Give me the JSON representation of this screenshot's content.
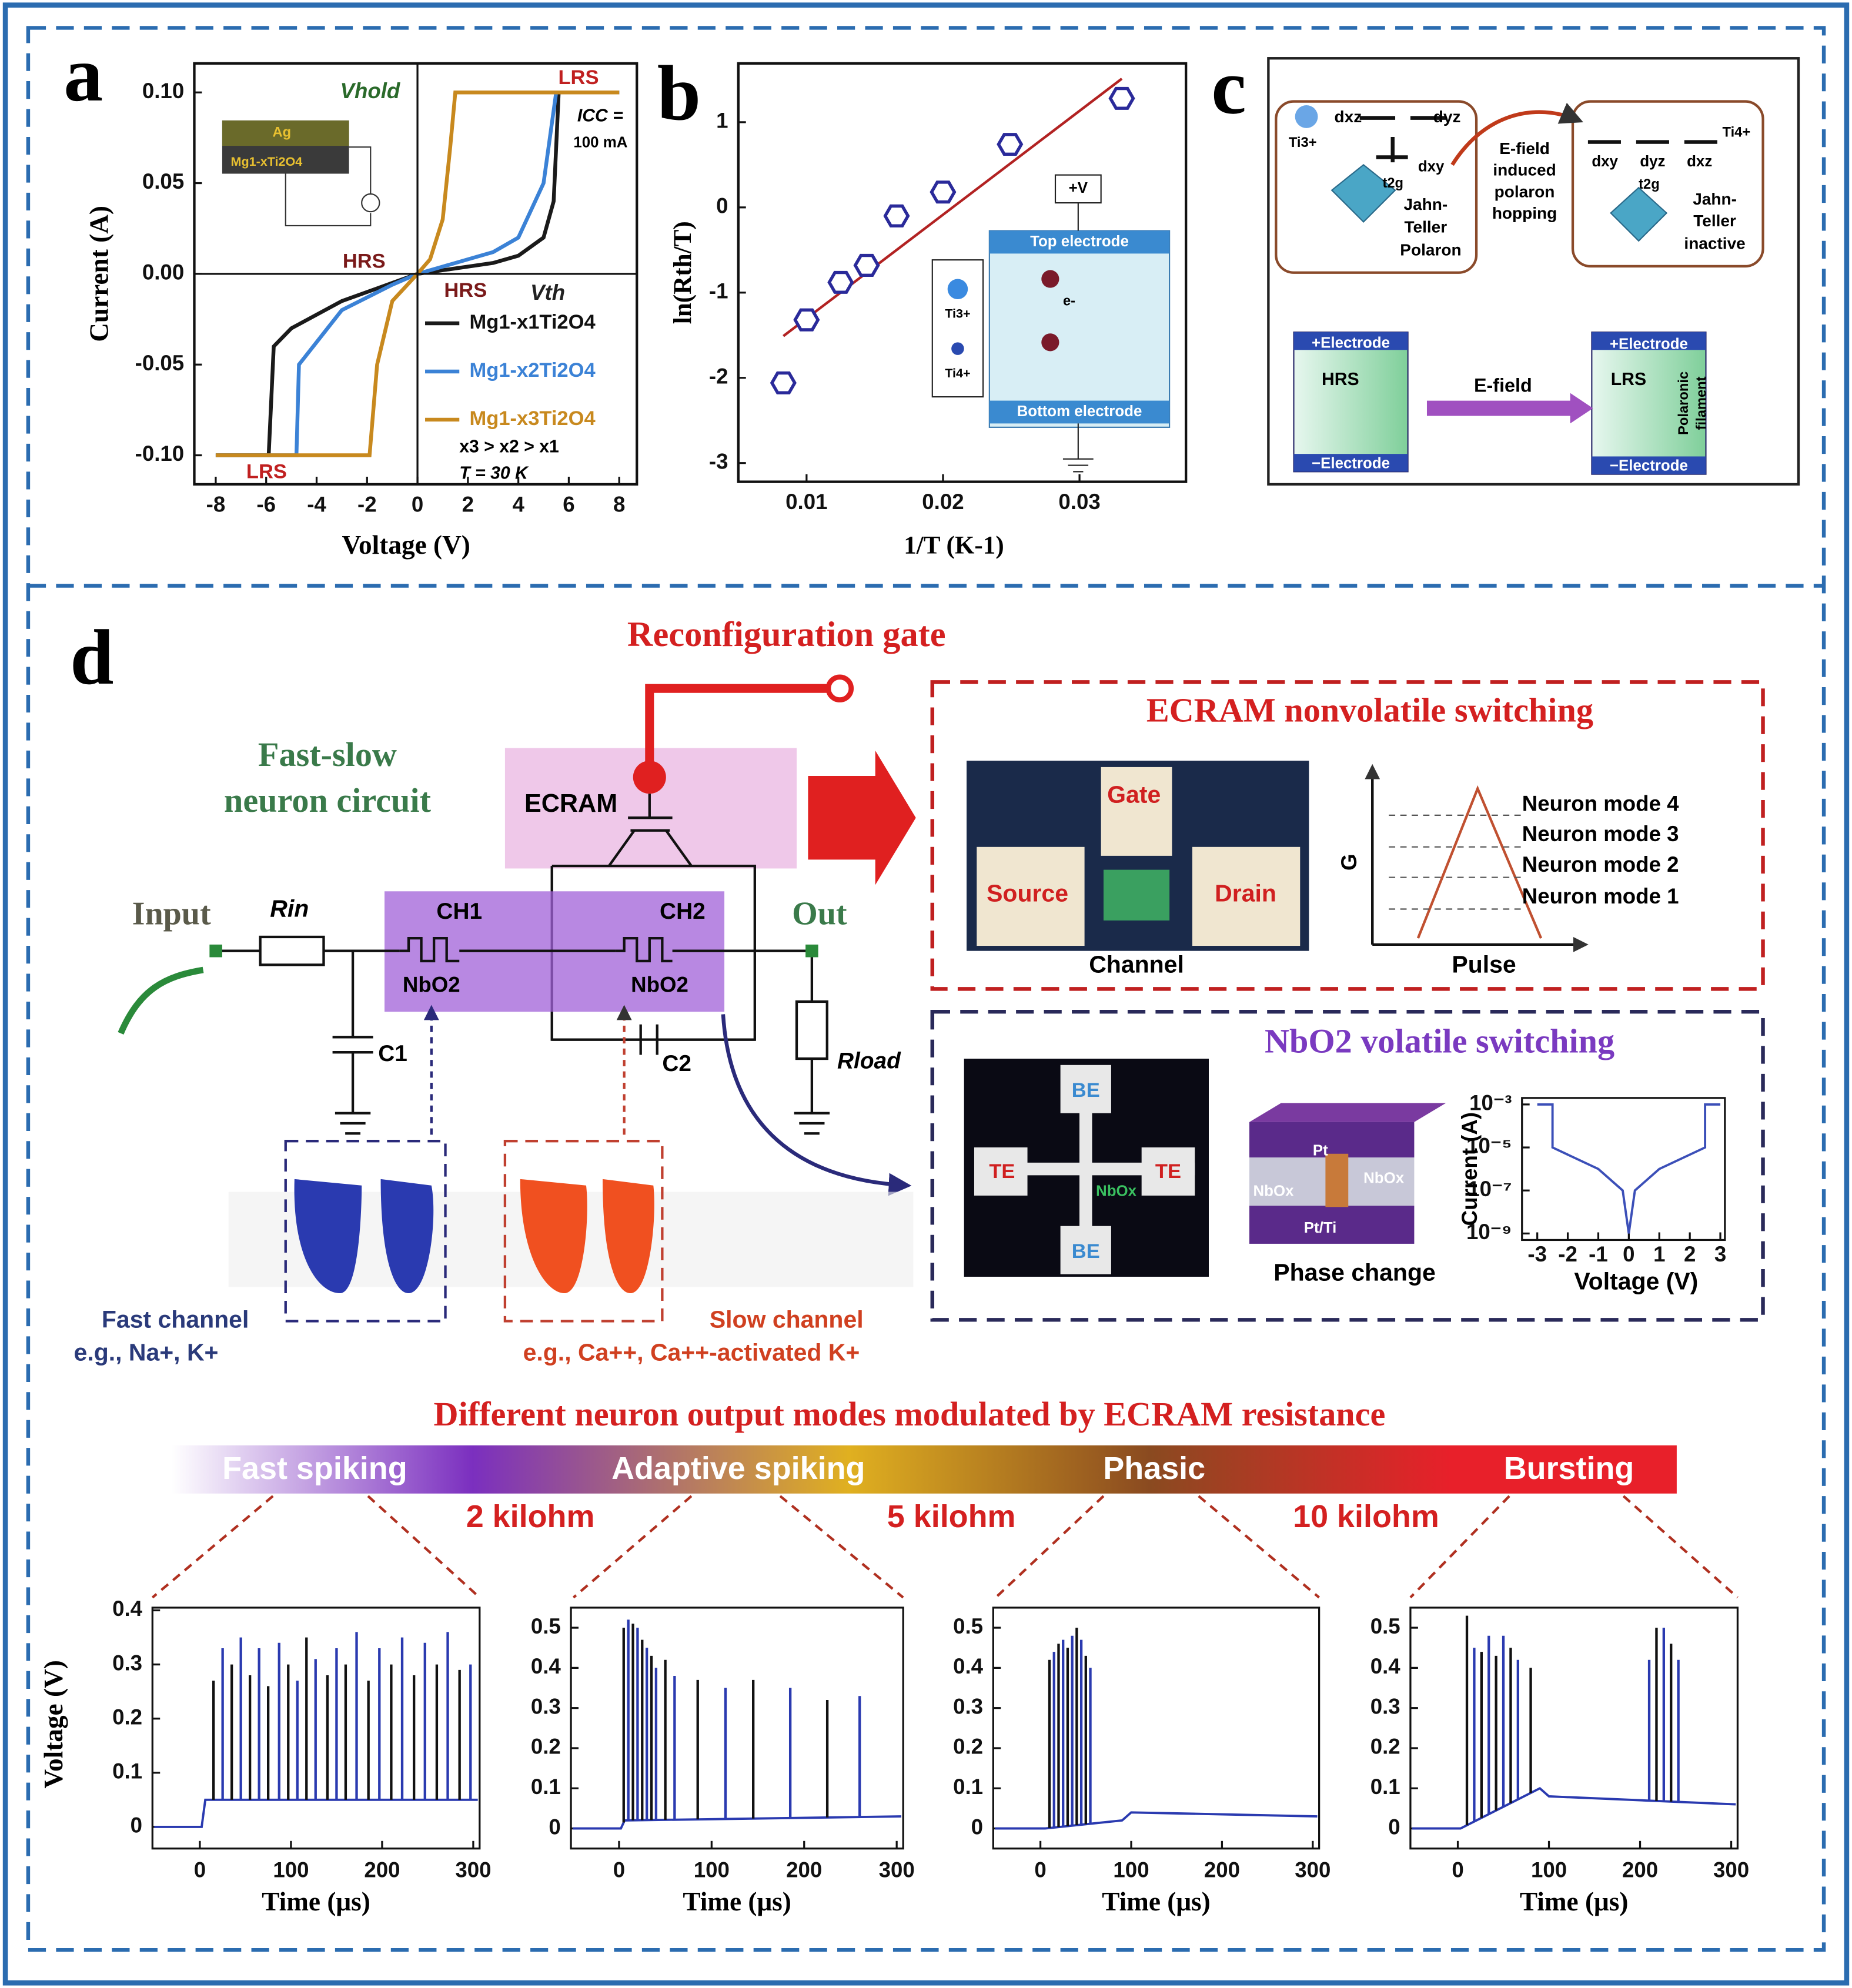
{
  "panel_a": {
    "label": "a",
    "type": "line",
    "xlabel": "Voltage (V)",
    "ylabel": "Current (A)",
    "xlim": [
      -8.85,
      8.7
    ],
    "ylim": [
      -0.116,
      0.116
    ],
    "xticks": [
      -8,
      -6,
      -4,
      -2,
      0,
      2,
      4,
      6,
      8
    ],
    "yticks": [
      {
        "value": 0.1,
        "label": "0.10"
      },
      {
        "value": 0.05,
        "label": "0.05"
      },
      {
        "value": 0,
        "label": "0.00"
      },
      {
        "value": -0.05,
        "label": "-0.05"
      },
      {
        "value": -0.1,
        "label": "-0.10"
      }
    ],
    "series": [
      {
        "name": "Mg1-x1Ti2O4",
        "color": "#1a1a1a",
        "x": [
          -8,
          -5.9,
          -5.7,
          -5,
          -3,
          -1,
          0,
          1,
          2,
          3,
          4,
          5,
          5.4,
          5.6,
          8
        ],
        "values": [
          -0.1,
          -0.1,
          -0.04,
          -0.03,
          -0.015,
          -0.005,
          0,
          0.002,
          0.004,
          0.006,
          0.01,
          0.02,
          0.04,
          0.1,
          0.1
        ]
      },
      {
        "name": "Mg1-x2Ti2O4",
        "color": "#3b82d6",
        "x": [
          -8,
          -4.8,
          -4.7,
          -3,
          -1,
          0,
          1,
          2,
          3,
          4,
          5,
          5.5,
          8
        ],
        "values": [
          -0.1,
          -0.1,
          -0.05,
          -0.02,
          -0.006,
          0,
          0.004,
          0.008,
          0.012,
          0.02,
          0.05,
          0.1,
          0.1
        ]
      },
      {
        "name": "Mg1-x3Ti2O4",
        "color": "#c8891e",
        "x": [
          -8,
          -1.9,
          -1.6,
          -1,
          0,
          0.5,
          1,
          1.3,
          1.5,
          8
        ],
        "values": [
          -0.1,
          -0.1,
          -0.05,
          -0.015,
          0,
          0.008,
          0.03,
          0.07,
          0.1,
          0.1
        ]
      }
    ],
    "annotations": [
      "LRS",
      "HRS",
      "HRS",
      "LRS",
      "Vhold",
      "Vth",
      "ICC =",
      "100 mA",
      "x3 > x2 > x1",
      "T = 30 K"
    ],
    "inset": [
      "Ag",
      "Mg1-xTi2O4"
    ]
  },
  "panel_b": {
    "label": "b",
    "type": "scatter",
    "xlabel": "1/T (K-1)",
    "ylabel": "ln(Rth/T)",
    "xlim": [
      0.005,
      0.0378
    ],
    "ylim": [
      -3.22,
      1.69
    ],
    "xticks": [
      0.01,
      0.02,
      0.03
    ],
    "yticks": [
      1,
      0,
      -1,
      -2,
      -3
    ],
    "x": [
      0.0083,
      0.01,
      0.0125,
      0.0144,
      0.0166,
      0.02,
      0.0249,
      0.0331
    ],
    "values": [
      -2.06,
      -1.32,
      -0.88,
      -0.68,
      -0.1,
      0.18,
      0.74,
      1.28
    ],
    "fit": {
      "color": "#b22222",
      "x": [
        0.0083,
        0.0331
      ],
      "values": [
        -1.51,
        1.51
      ]
    },
    "inset": [
      "+V",
      "Top electrode",
      "Bottom electrode",
      "Ti3+",
      "Ti4+",
      "e-"
    ]
  },
  "panel_c": {
    "label": "c",
    "top_left": [
      "dxz",
      "dyz",
      "dxy",
      "t2g",
      "Ti3+",
      "Jahn-",
      "Teller",
      "Polaron"
    ],
    "arrow_text": [
      "E-field",
      "induced",
      "polaron",
      "hopping"
    ],
    "top_right": [
      "dxy",
      "dyz",
      "dxz",
      "t2g",
      "Ti4+",
      "Jahn-",
      "Teller",
      "inactive"
    ],
    "bottom_left": [
      "+Electrode",
      "HRS",
      "−Electrode"
    ],
    "bottom_arrow": "E-field",
    "bottom_right": [
      "+Electrode",
      "LRS",
      "Polaronic",
      "filament",
      "−Electrode"
    ]
  },
  "panel_d": {
    "label": "d",
    "circuit": {
      "gate": "Reconfiguration gate",
      "title": [
        "Fast-slow",
        "neuron circuit"
      ],
      "ecram": "ECRAM",
      "input": "Input",
      "rin": "Rin",
      "ch1": "CH1",
      "ch2": "CH2",
      "nbo1": "NbO2",
      "nbo2": "NbO2",
      "out": "Out",
      "c1": "C1",
      "c2": "C2",
      "rload": "Rload",
      "fast": [
        "Fast channel",
        "e.g., Na+, K+"
      ],
      "slow": [
        "Slow channel",
        "e.g., Ca++, Ca++-activated K+"
      ]
    },
    "ecram_box": {
      "title": "ECRAM nonvolatile switching",
      "gate": "Gate",
      "source": "Source",
      "drain": "Drain",
      "channel": "Channel",
      "ylabel": "G",
      "xlabel": "Pulse",
      "modes": [
        "Neuron mode 4",
        "Neuron mode 3",
        "Neuron mode 2",
        "Neuron mode 1"
      ]
    },
    "nbo_box": {
      "title": "NbO2 volatile switching",
      "device": [
        "BE",
        "TE",
        "TE",
        "BE",
        "NbOx"
      ],
      "stack": [
        "Pt",
        "NbOx",
        "NbOx",
        "Pt/Ti",
        "Phase change"
      ],
      "iv": {
        "type": "line",
        "xlabel": "Voltage (V)",
        "ylabel": "Current (A)",
        "log_y": true,
        "xlim": [
          -3.5,
          3.15
        ],
        "ylim": [
          5e-10,
          0.002
        ],
        "xticks": [
          -3,
          -2,
          -1,
          0,
          1,
          2,
          3
        ],
        "yticks": [
          {
            "value": 1e-09,
            "label": "10⁻⁹"
          },
          {
            "value": 1e-07,
            "label": "10⁻⁷"
          },
          {
            "value": 1e-05,
            "label": "10⁻⁵"
          },
          {
            "value": 0.001,
            "label": "10⁻³"
          }
        ],
        "series": [
          {
            "color": "#3b4fb8",
            "x": [
              -3,
              -2.5,
              -2.5,
              -1,
              -0.2,
              0,
              0.2,
              1,
              2.5,
              2.5,
              3
            ],
            "values": [
              0.001,
              0.001,
              1e-05,
              1e-06,
              1e-07,
              1e-09,
              1e-07,
              1e-06,
              1e-05,
              0.001,
              0.001
            ]
          }
        ]
      }
    },
    "modes": {
      "title": "Different neuron output modes modulated by ECRAM resistance",
      "names": [
        "Fast spiking",
        "Adaptive spiking",
        "Phasic",
        "Bursting"
      ],
      "resistances": [
        "2 kilohm",
        "5 kilohm",
        "10 kilohm"
      ]
    },
    "spike_plots": [
      {
        "ylabel": "Voltage (V)",
        "xlabel": "Time (μs)",
        "xlim": [
          -52,
          307
        ],
        "ylim": [
          -0.04,
          0.405
        ],
        "xticks": [
          0,
          100,
          200,
          300
        ],
        "yticks": [
          0,
          0.1,
          0.2,
          0.3,
          0.4
        ],
        "spike_times": [
          15,
          25,
          35,
          45,
          55,
          65,
          75,
          87,
          97,
          107,
          117,
          127,
          140,
          150,
          160,
          172,
          185,
          197,
          210,
          222,
          235,
          247,
          260,
          272,
          285,
          297
        ],
        "spike_peaks": [
          0.27,
          0.33,
          0.3,
          0.35,
          0.28,
          0.33,
          0.26,
          0.34,
          0.3,
          0.27,
          0.35,
          0.31,
          0.28,
          0.33,
          0.3,
          0.36,
          0.27,
          0.33,
          0.3,
          0.35,
          0.28,
          0.34,
          0.3,
          0.36,
          0.29,
          0.3
        ],
        "baseline_x": [
          -50,
          2,
          6,
          305
        ],
        "baseline": [
          0,
          0,
          0.05,
          0.05
        ]
      },
      {
        "xlabel": "Time (μs)",
        "xlim": [
          -52,
          307
        ],
        "ylim": [
          -0.05,
          0.55
        ],
        "xticks": [
          0,
          100,
          200,
          300
        ],
        "yticks": [
          0,
          0.1,
          0.2,
          0.3,
          0.4,
          0.5
        ],
        "spike_times": [
          5,
          10,
          15,
          20,
          25,
          30,
          35,
          40,
          50,
          60,
          85,
          115,
          145,
          185,
          225,
          260
        ],
        "spike_peaks": [
          0.5,
          0.52,
          0.51,
          0.5,
          0.47,
          0.45,
          0.43,
          0.4,
          0.42,
          0.38,
          0.37,
          0.35,
          0.37,
          0.35,
          0.32,
          0.33
        ],
        "baseline_x": [
          -50,
          2,
          6,
          305
        ],
        "baseline": [
          0,
          0,
          0.02,
          0.03
        ]
      },
      {
        "xlabel": "Time (μs)",
        "xlim": [
          -52,
          307
        ],
        "ylim": [
          -0.05,
          0.55
        ],
        "xticks": [
          0,
          100,
          200,
          300
        ],
        "yticks": [
          0,
          0.1,
          0.2,
          0.3,
          0.4,
          0.5
        ],
        "spike_times": [
          10,
          15,
          20,
          25,
          30,
          35,
          40,
          45,
          50,
          55
        ],
        "spike_peaks": [
          0.42,
          0.44,
          0.46,
          0.47,
          0.45,
          0.48,
          0.5,
          0.47,
          0.43,
          0.4
        ],
        "baseline_x": [
          -50,
          5,
          90,
          100,
          305
        ],
        "baseline": [
          0,
          0,
          0.02,
          0.04,
          0.03
        ]
      },
      {
        "xlabel": "Time (μs)",
        "xlim": [
          -52,
          307
        ],
        "ylim": [
          -0.05,
          0.55
        ],
        "xticks": [
          0,
          100,
          200,
          300
        ],
        "yticks": [
          0,
          0.1,
          0.2,
          0.3,
          0.4,
          0.5
        ],
        "spike_times": [
          10,
          18,
          26,
          34,
          42,
          50,
          58,
          66,
          80,
          210,
          218,
          226,
          234,
          242
        ],
        "spike_peaks": [
          0.53,
          0.45,
          0.44,
          0.48,
          0.43,
          0.48,
          0.45,
          0.42,
          0.4,
          0.42,
          0.5,
          0.5,
          0.46,
          0.42
        ],
        "baseline_x": [
          -50,
          3,
          90,
          100,
          305
        ],
        "baseline": [
          0,
          0,
          0.1,
          0.08,
          0.06
        ]
      }
    ]
  }
}
